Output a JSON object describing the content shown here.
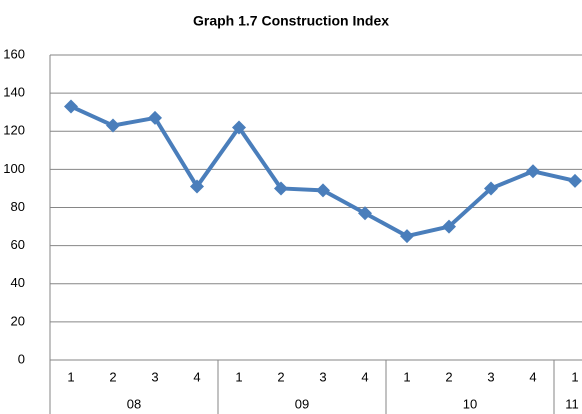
{
  "chart_data": {
    "type": "line",
    "title": "Graph 1.7 Construction Index",
    "categories": [
      "1",
      "2",
      "3",
      "4",
      "1",
      "2",
      "3",
      "4",
      "1",
      "2",
      "3",
      "4",
      "1"
    ],
    "groups": [
      "08",
      "09",
      "10",
      "11"
    ],
    "series": [
      {
        "name": "Construction Index",
        "color": "#4a7ebb",
        "values": [
          133,
          123,
          127,
          91,
          122,
          90,
          89,
          77,
          65,
          70,
          90,
          99,
          94
        ]
      }
    ],
    "ylim": [
      0,
      160
    ],
    "yticks": [
      0,
      20,
      40,
      60,
      80,
      100,
      120,
      140,
      160
    ],
    "grid": true
  }
}
